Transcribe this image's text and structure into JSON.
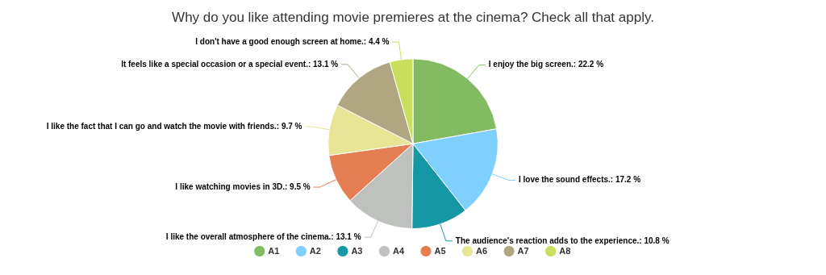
{
  "chart_data": {
    "type": "pie",
    "title": "Why do you like attending movie premieres at the cinema? Check all that apply.",
    "categories": [
      "A1",
      "A2",
      "A3",
      "A4",
      "A5",
      "A6",
      "A7",
      "A8"
    ],
    "values": [
      22.2,
      17.2,
      10.8,
      13.1,
      9.5,
      9.7,
      13.1,
      4.4
    ],
    "colors": [
      "#82bb62",
      "#7fcfff",
      "#1597a5",
      "#bec1be",
      "#e57e53",
      "#e8e596",
      "#b0a782",
      "#c9de5c"
    ],
    "value_labels": [
      "I enjoy the big screen.: 22.2 %",
      "I love the sound effects.: 17.2 %",
      "The audience's reaction adds to the experience.: 10.8 %",
      "I like the overall atmosphere of the cinema.: 13.1 %",
      "I like watching movies in 3D.: 9.5 %",
      "I like the fact that I can go and watch the movie with friends.: 9.7 %",
      "It feels like a special occasion or a special event.: 13.1 %",
      "I don't have a good enough screen at home.: 4.4 %"
    ],
    "legend": "bottom"
  }
}
